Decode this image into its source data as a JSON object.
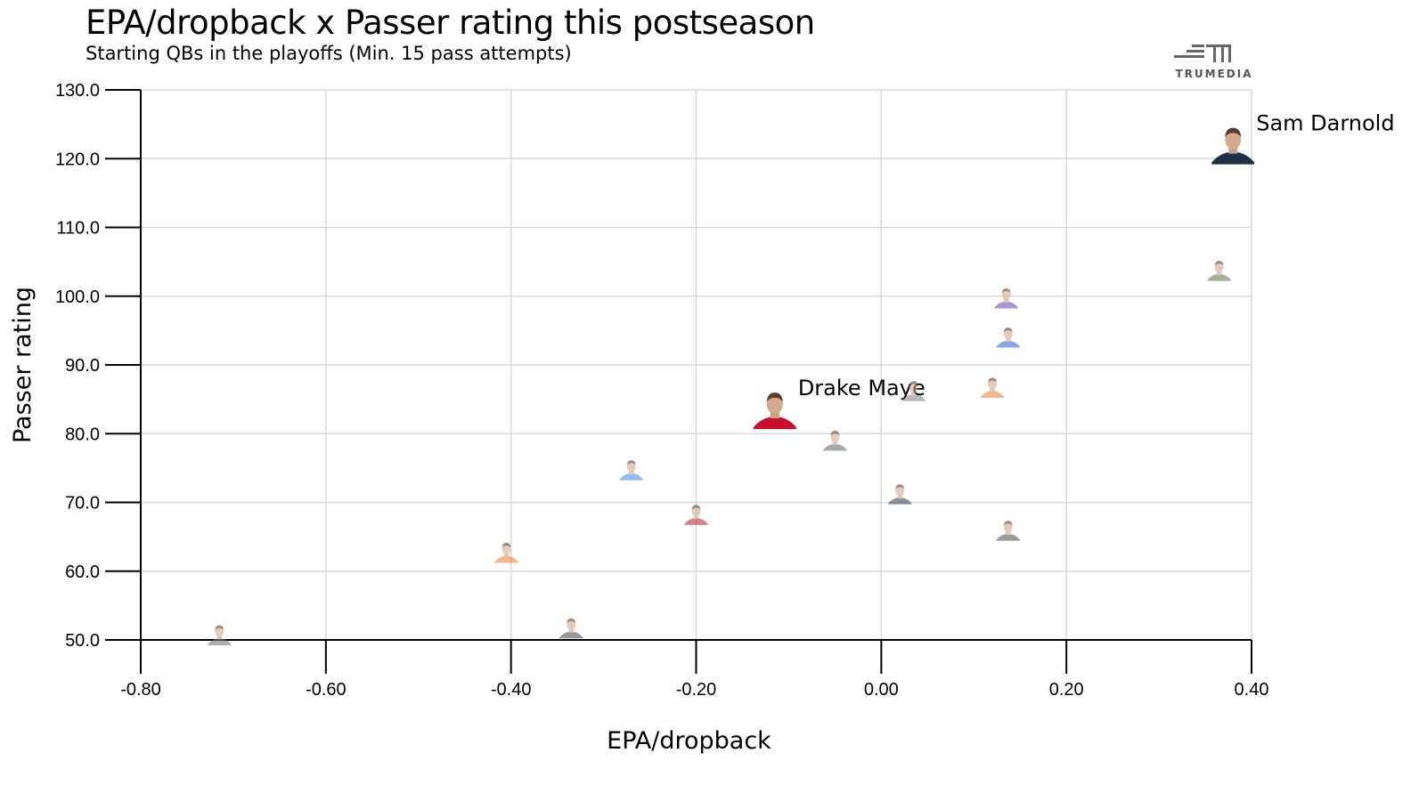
{
  "header": {
    "title": "EPA/dropback x Passer rating this postseason",
    "subtitle": "Starting QBs in the playoffs (Min. 15 pass attempts)"
  },
  "logo": {
    "text": "TRUMEDIA"
  },
  "chart_data": {
    "type": "scatter",
    "title": "EPA/dropback x Passer rating this postseason",
    "subtitle": "Starting QBs in the playoffs (Min. 15 pass attempts)",
    "xlabel": "EPA/dropback",
    "ylabel": "Passer rating",
    "xlim": [
      -0.8,
      0.4
    ],
    "ylim": [
      50,
      130
    ],
    "xticks": [
      "-0.80",
      "-0.60",
      "-0.40",
      "-0.20",
      "0.00",
      "0.20",
      "0.40"
    ],
    "yticks": [
      "50.0",
      "60.0",
      "70.0",
      "80.0",
      "90.0",
      "100.0",
      "110.0",
      "120.0",
      "130.0"
    ],
    "grid": true,
    "points": [
      {
        "x": 0.38,
        "y": 121.5,
        "label": "Sam Darnold",
        "highlight": true,
        "color": "#1f3044"
      },
      {
        "x": -0.115,
        "y": 83.0,
        "label": "Drake Maye",
        "highlight": true,
        "color": "#c8102e"
      },
      {
        "x": 0.365,
        "y": 103.5,
        "color": "#6f7d5a"
      },
      {
        "x": 0.135,
        "y": 99.5,
        "color": "#6b54b8"
      },
      {
        "x": 0.137,
        "y": 93.8,
        "color": "#3a6fd1"
      },
      {
        "x": 0.12,
        "y": 86.5,
        "color": "#f2873d"
      },
      {
        "x": 0.035,
        "y": 86.0,
        "color": "#8a8a8a"
      },
      {
        "x": -0.05,
        "y": 78.8,
        "color": "#707070"
      },
      {
        "x": 0.02,
        "y": 71.0,
        "color": "#3d4a5c"
      },
      {
        "x": 0.137,
        "y": 65.7,
        "color": "#5a5a5a"
      },
      {
        "x": -0.27,
        "y": 74.5,
        "color": "#4b8ee8"
      },
      {
        "x": -0.2,
        "y": 68.0,
        "color": "#b83232"
      },
      {
        "x": -0.405,
        "y": 62.5,
        "color": "#f2873d"
      },
      {
        "x": -0.335,
        "y": 51.5,
        "color": "#555555"
      },
      {
        "x": -0.715,
        "y": 50.5,
        "color": "#777777"
      }
    ]
  }
}
